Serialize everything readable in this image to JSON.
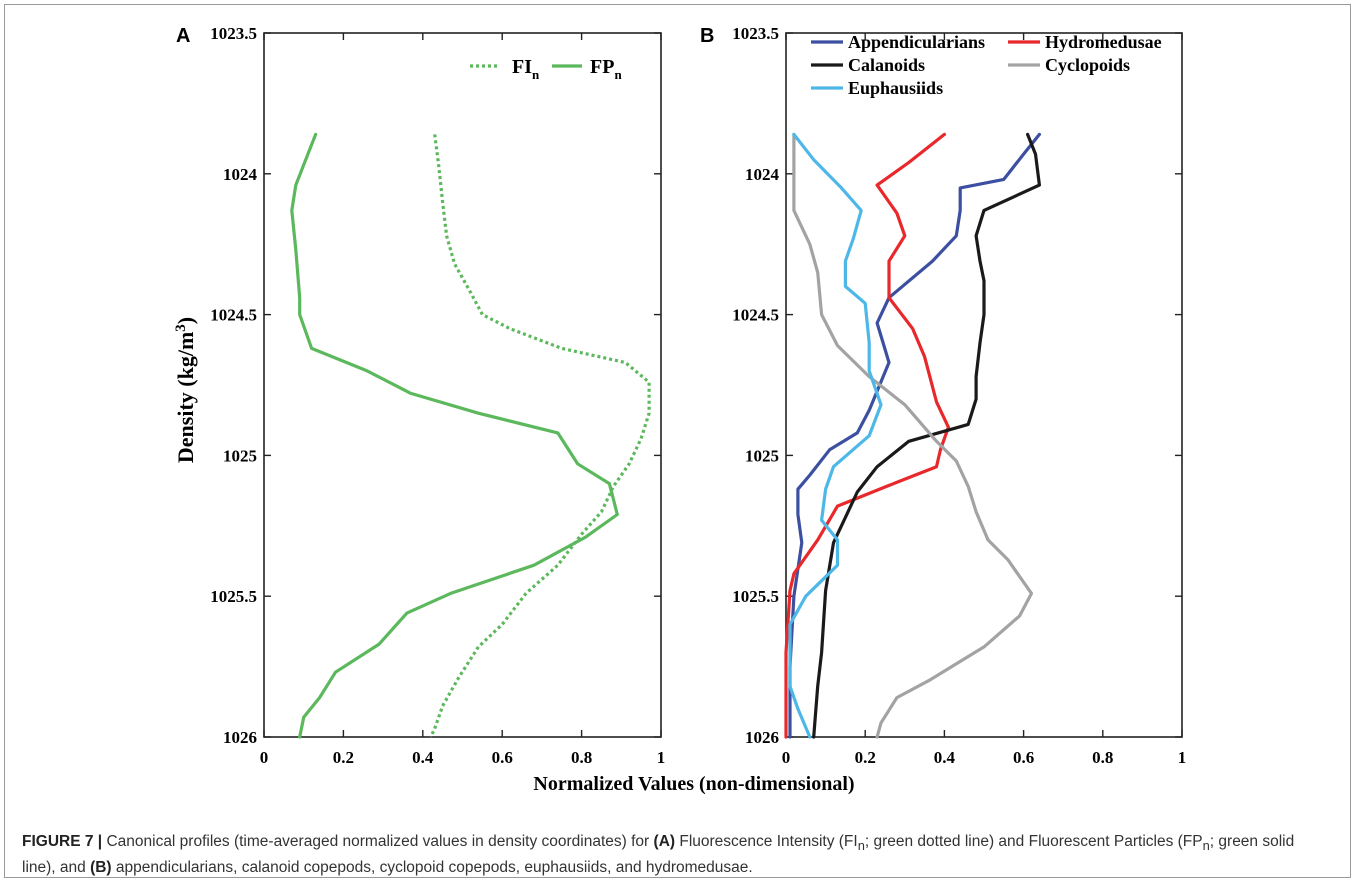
{
  "chart_data": [
    {
      "type": "line",
      "panel_label": "A",
      "xlabel": "Normalized Values (non-dimensional)",
      "ylabel": "Density (kg/m³)",
      "xlim": [
        0,
        1
      ],
      "ylim": [
        1023.5,
        1026
      ],
      "y_reversed": true,
      "xticks": [
        "0",
        "0.2",
        "0.4",
        "0.6",
        "0.8",
        "1"
      ],
      "yticks": [
        "1023.5",
        "1024",
        "1024.5",
        "1025",
        "1025.5",
        "1026"
      ],
      "legend_position": "top-right",
      "series": [
        {
          "name": "FI",
          "name_sub": "n",
          "style": "dotted",
          "color": "#5cb85c",
          "points": [
            [
              0.43,
              1023.86
            ],
            [
              0.44,
              1023.97
            ],
            [
              0.45,
              1024.1
            ],
            [
              0.46,
              1024.22
            ],
            [
              0.48,
              1024.32
            ],
            [
              0.52,
              1024.42
            ],
            [
              0.55,
              1024.5
            ],
            [
              0.62,
              1024.55
            ],
            [
              0.75,
              1024.62
            ],
            [
              0.91,
              1024.67
            ],
            [
              0.97,
              1024.74
            ],
            [
              0.97,
              1024.85
            ],
            [
              0.95,
              1024.94
            ],
            [
              0.92,
              1025.03
            ],
            [
              0.88,
              1025.11
            ],
            [
              0.85,
              1025.2
            ],
            [
              0.8,
              1025.28
            ],
            [
              0.74,
              1025.39
            ],
            [
              0.66,
              1025.49
            ],
            [
              0.6,
              1025.6
            ],
            [
              0.54,
              1025.68
            ],
            [
              0.49,
              1025.79
            ],
            [
              0.45,
              1025.89
            ],
            [
              0.43,
              1025.97
            ],
            [
              0.42,
              1026.0
            ]
          ]
        },
        {
          "name": "FP",
          "name_sub": "n",
          "style": "solid",
          "color": "#5cb85c",
          "points": [
            [
              0.13,
              1023.86
            ],
            [
              0.08,
              1024.04
            ],
            [
              0.07,
              1024.13
            ],
            [
              0.08,
              1024.27
            ],
            [
              0.09,
              1024.44
            ],
            [
              0.09,
              1024.5
            ],
            [
              0.12,
              1024.62
            ],
            [
              0.26,
              1024.7
            ],
            [
              0.37,
              1024.78
            ],
            [
              0.54,
              1024.85
            ],
            [
              0.74,
              1024.92
            ],
            [
              0.79,
              1025.03
            ],
            [
              0.87,
              1025.1
            ],
            [
              0.89,
              1025.21
            ],
            [
              0.81,
              1025.29
            ],
            [
              0.68,
              1025.39
            ],
            [
              0.47,
              1025.49
            ],
            [
              0.36,
              1025.56
            ],
            [
              0.29,
              1025.67
            ],
            [
              0.18,
              1025.77
            ],
            [
              0.14,
              1025.86
            ],
            [
              0.1,
              1025.93
            ],
            [
              0.09,
              1026.0
            ]
          ]
        }
      ]
    },
    {
      "type": "line",
      "panel_label": "B",
      "xlabel": "",
      "ylabel": "",
      "xlim": [
        0,
        1
      ],
      "ylim": [
        1023.5,
        1026
      ],
      "y_reversed": true,
      "xticks": [
        "0",
        "0.2",
        "0.4",
        "0.6",
        "0.8",
        "1"
      ],
      "yticks": [
        "1023.5",
        "1024",
        "1024.5",
        "1025",
        "1025.5",
        "1026"
      ],
      "legend_position": "top-left",
      "series": [
        {
          "name": "Appendicularians",
          "color": "#3c4fa0",
          "points": [
            [
              0.64,
              1023.86
            ],
            [
              0.6,
              1023.93
            ],
            [
              0.55,
              1024.02
            ],
            [
              0.44,
              1024.05
            ],
            [
              0.44,
              1024.13
            ],
            [
              0.43,
              1024.22
            ],
            [
              0.37,
              1024.31
            ],
            [
              0.26,
              1024.44
            ],
            [
              0.23,
              1024.53
            ],
            [
              0.26,
              1024.67
            ],
            [
              0.21,
              1024.84
            ],
            [
              0.18,
              1024.92
            ],
            [
              0.11,
              1024.98
            ],
            [
              0.06,
              1025.07
            ],
            [
              0.03,
              1025.12
            ],
            [
              0.03,
              1025.21
            ],
            [
              0.04,
              1025.31
            ],
            [
              0.02,
              1025.5
            ],
            [
              0.01,
              1025.75
            ],
            [
              0.01,
              1026.0
            ]
          ]
        },
        {
          "name": "Hydromedusae",
          "color": "#e8282a",
          "points": [
            [
              0.4,
              1023.86
            ],
            [
              0.31,
              1023.96
            ],
            [
              0.23,
              1024.04
            ],
            [
              0.28,
              1024.14
            ],
            [
              0.3,
              1024.22
            ],
            [
              0.26,
              1024.31
            ],
            [
              0.26,
              1024.44
            ],
            [
              0.32,
              1024.55
            ],
            [
              0.35,
              1024.65
            ],
            [
              0.38,
              1024.81
            ],
            [
              0.41,
              1024.9
            ],
            [
              0.39,
              1024.98
            ],
            [
              0.38,
              1025.04
            ],
            [
              0.29,
              1025.09
            ],
            [
              0.13,
              1025.18
            ],
            [
              0.08,
              1025.3
            ],
            [
              0.02,
              1025.42
            ],
            [
              0.01,
              1025.48
            ],
            [
              0.0,
              1025.7
            ],
            [
              0.0,
              1026.0
            ]
          ]
        },
        {
          "name": "Calanoids",
          "color": "#1a1a1a",
          "points": [
            [
              0.61,
              1023.86
            ],
            [
              0.63,
              1023.93
            ],
            [
              0.64,
              1024.04
            ],
            [
              0.5,
              1024.13
            ],
            [
              0.48,
              1024.22
            ],
            [
              0.49,
              1024.31
            ],
            [
              0.5,
              1024.38
            ],
            [
              0.5,
              1024.5
            ],
            [
              0.49,
              1024.6
            ],
            [
              0.48,
              1024.72
            ],
            [
              0.48,
              1024.8
            ],
            [
              0.46,
              1024.89
            ],
            [
              0.31,
              1024.95
            ],
            [
              0.23,
              1025.04
            ],
            [
              0.18,
              1025.13
            ],
            [
              0.15,
              1025.22
            ],
            [
              0.12,
              1025.31
            ],
            [
              0.1,
              1025.48
            ],
            [
              0.09,
              1025.7
            ],
            [
              0.08,
              1025.82
            ],
            [
              0.07,
              1026.0
            ]
          ]
        },
        {
          "name": "Cyclopoids",
          "color": "#a3a3a3",
          "points": [
            [
              0.02,
              1023.86
            ],
            [
              0.02,
              1024.02
            ],
            [
              0.02,
              1024.13
            ],
            [
              0.06,
              1024.25
            ],
            [
              0.08,
              1024.35
            ],
            [
              0.09,
              1024.5
            ],
            [
              0.13,
              1024.61
            ],
            [
              0.21,
              1024.72
            ],
            [
              0.3,
              1024.82
            ],
            [
              0.38,
              1024.95
            ],
            [
              0.43,
              1025.02
            ],
            [
              0.46,
              1025.11
            ],
            [
              0.48,
              1025.2
            ],
            [
              0.51,
              1025.3
            ],
            [
              0.56,
              1025.37
            ],
            [
              0.59,
              1025.43
            ],
            [
              0.62,
              1025.49
            ],
            [
              0.59,
              1025.57
            ],
            [
              0.5,
              1025.68
            ],
            [
              0.36,
              1025.8
            ],
            [
              0.28,
              1025.86
            ],
            [
              0.24,
              1025.95
            ],
            [
              0.23,
              1026.0
            ]
          ]
        },
        {
          "name": "Euphausiids",
          "color": "#4db8e8",
          "points": [
            [
              0.02,
              1023.86
            ],
            [
              0.07,
              1023.95
            ],
            [
              0.14,
              1024.05
            ],
            [
              0.19,
              1024.13
            ],
            [
              0.17,
              1024.23
            ],
            [
              0.15,
              1024.31
            ],
            [
              0.15,
              1024.4
            ],
            [
              0.2,
              1024.46
            ],
            [
              0.21,
              1024.6
            ],
            [
              0.21,
              1024.7
            ],
            [
              0.24,
              1024.82
            ],
            [
              0.21,
              1024.93
            ],
            [
              0.12,
              1025.04
            ],
            [
              0.1,
              1025.12
            ],
            [
              0.09,
              1025.23
            ],
            [
              0.13,
              1025.3
            ],
            [
              0.13,
              1025.39
            ],
            [
              0.05,
              1025.5
            ],
            [
              0.01,
              1025.6
            ],
            [
              0.01,
              1025.82
            ],
            [
              0.03,
              1025.9
            ],
            [
              0.06,
              1026.0
            ]
          ]
        }
      ]
    }
  ],
  "caption": {
    "figure_label": "FIGURE 7 |",
    "p1": " Canonical profiles (time-averaged normalized values in density coordinates) for ",
    "a_label": "(A)",
    "p2": " Fluorescence Intensity (FI",
    "sub1": "n",
    "p3": "; green dotted line) and Fluorescent Particles (FP",
    "sub2": "n",
    "p4": "; green solid line), and ",
    "b_label": "(B)",
    "p5": " appendicularians, calanoid copepods, cyclopoid copepods, euphausiids, and hydromedusae."
  }
}
